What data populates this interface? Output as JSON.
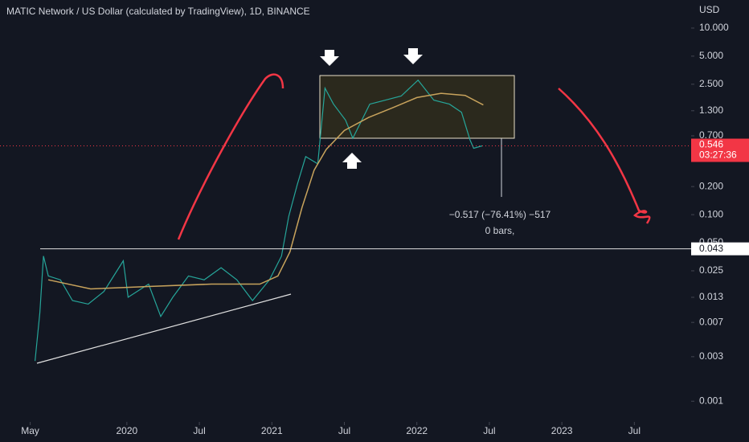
{
  "chart_data": {
    "type": "line",
    "title": "MATIC Network / US Dollar (calculated by TradingView), 1D, BINANCE",
    "y_axis_label": "USD",
    "log_scale": true,
    "ylim": [
      0.0006,
      20
    ],
    "yticks": [
      {
        "value": 10,
        "label": "10.000"
      },
      {
        "value": 5,
        "label": "5.000"
      },
      {
        "value": 2.5,
        "label": "2.500"
      },
      {
        "value": 1.3,
        "label": "1.300"
      },
      {
        "value": 0.7,
        "label": "0.700"
      },
      {
        "value": 0.2,
        "label": "0.200"
      },
      {
        "value": 0.1,
        "label": "0.100"
      },
      {
        "value": 0.05,
        "label": "0.050"
      },
      0.025,
      0.013,
      0.007,
      0.003,
      0.001
    ],
    "xlim": [
      -2.5,
      54.7
    ],
    "xticks": [
      {
        "value": 0,
        "label": "May"
      },
      {
        "value": 8,
        "label": "2020"
      },
      {
        "value": 14,
        "label": "Jul"
      },
      {
        "value": 20,
        "label": "2021"
      },
      {
        "value": 26,
        "label": "Jul"
      },
      {
        "value": 32,
        "label": "2022"
      },
      {
        "value": 38,
        "label": "Jul"
      },
      {
        "value": 44,
        "label": "2023"
      },
      {
        "value": 50,
        "label": "Jul"
      }
    ],
    "series": [
      {
        "color": "#26a69a",
        "x": [
          0.4,
          0.8,
          1.1,
          1.5,
          2.5,
          3.5,
          4.8,
          6.1,
          7.7,
          8.1,
          9.8,
          10.8,
          11.8,
          13.1,
          14.4,
          15.8,
          17.1,
          18.4,
          19.8,
          20.8,
          21.4,
          22.1,
          22.8,
          23.8,
          24.4,
          25.1,
          26.1,
          26.7,
          28.1,
          29.4,
          30.7,
          32.1,
          33.4,
          34.7,
          35.7,
          36.4,
          36.7,
          37.4
        ],
        "values": [
          0.0027,
          0.0089,
          0.036,
          0.022,
          0.02,
          0.012,
          0.011,
          0.015,
          0.032,
          0.013,
          0.018,
          0.0081,
          0.013,
          0.022,
          0.02,
          0.027,
          0.02,
          0.012,
          0.02,
          0.036,
          0.096,
          0.21,
          0.42,
          0.35,
          2.27,
          1.53,
          1.03,
          0.66,
          1.53,
          1.69,
          1.87,
          2.77,
          1.69,
          1.53,
          1.25,
          0.63,
          0.515,
          0.546
        ]
      },
      {
        "color": "#c8a35c",
        "x": [
          1.5,
          5,
          10,
          15,
          19,
          20.5,
          21.5,
          22.5,
          23.5,
          24.5,
          26,
          28,
          30,
          32,
          34,
          36,
          37.5
        ],
        "values": [
          0.02,
          0.016,
          0.017,
          0.018,
          0.018,
          0.022,
          0.04,
          0.12,
          0.3,
          0.5,
          0.8,
          1.1,
          1.4,
          1.8,
          2.0,
          1.9,
          1.5
        ]
      }
    ],
    "last_price": 0.546,
    "countdown": "03:27:36",
    "hline": 0.043,
    "annotations": [
      "−0.517 (−76.41%) −517",
      "0 bars,"
    ]
  }
}
